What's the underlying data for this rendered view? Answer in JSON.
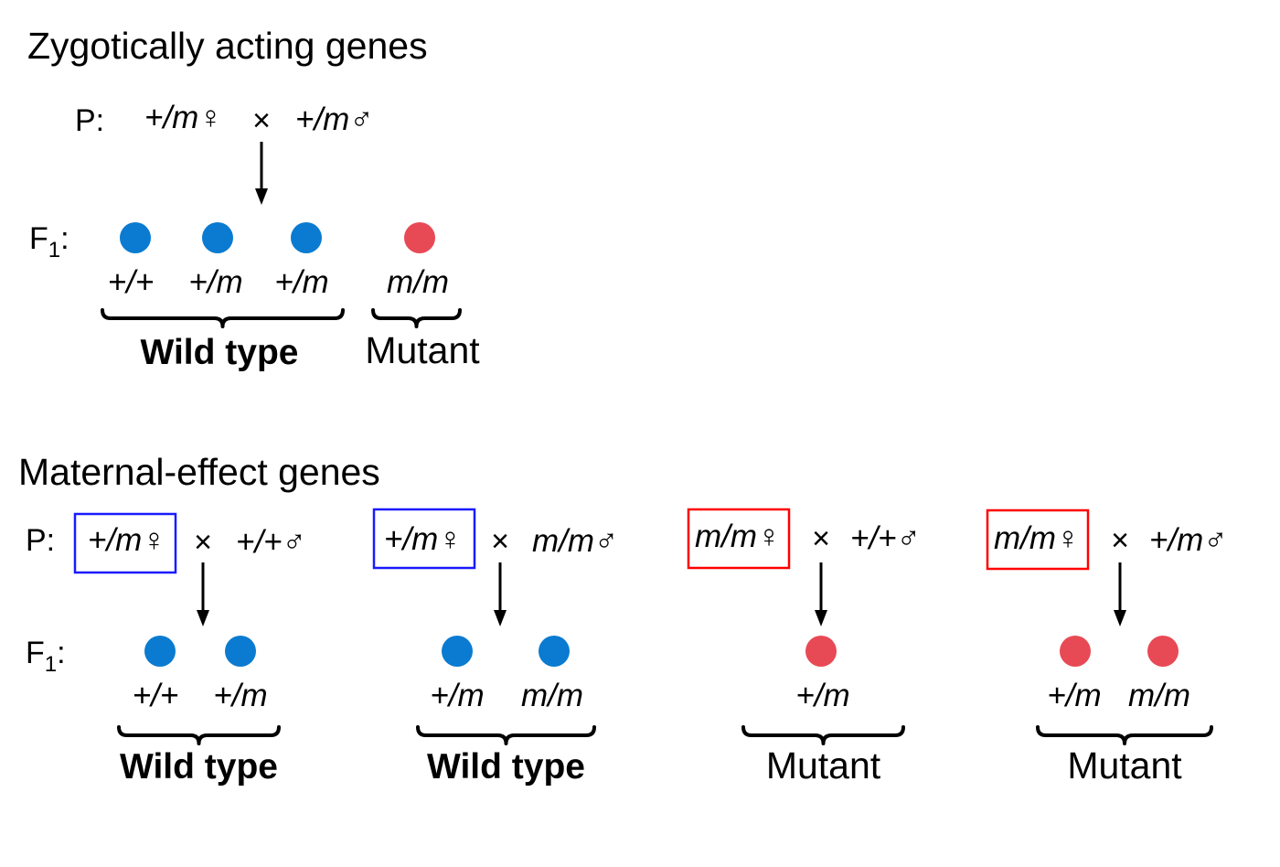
{
  "colors": {
    "wild_type_dot": "#0a7bd0",
    "mutant_dot": "#e84a55",
    "heterozygous_mother_box": "#1a1aff",
    "homozygous_mother_box": "#ff0000"
  },
  "zygotic": {
    "title": "Zygotically acting genes",
    "p_label": "P:",
    "f1_label": "F",
    "f1_sub": "1",
    "f1_colon": ":",
    "female": "+/m♀",
    "cross": "×",
    "male": "+/m♂",
    "offspring": [
      {
        "genotype": "+/+",
        "phenotype": "wild"
      },
      {
        "genotype": "+/m",
        "phenotype": "wild"
      },
      {
        "genotype": "+/m",
        "phenotype": "wild"
      },
      {
        "genotype": "m/m",
        "phenotype": "mutant"
      }
    ],
    "groups": [
      "Wild type",
      "Mutant"
    ]
  },
  "maternal": {
    "title": "Maternal-effect genes",
    "p_label": "P:",
    "f1_label": "F",
    "f1_sub": "1",
    "f1_colon": ":",
    "crosses": [
      {
        "female": "+/m♀",
        "cross": "×",
        "male": "+/+♂",
        "box": "blue",
        "offspring": [
          "+/+",
          "+/m"
        ],
        "phenotype": "wild",
        "result": "Wild type"
      },
      {
        "female": "+/m♀",
        "cross": "×",
        "male": "m/m♂",
        "box": "blue",
        "offspring": [
          "+/m",
          "m/m"
        ],
        "phenotype": "wild",
        "result": "Wild type"
      },
      {
        "female": "m/m♀",
        "cross": "×",
        "male": "+/+♂",
        "box": "red",
        "offspring": [
          "+/m"
        ],
        "phenotype": "mutant",
        "result": "Mutant"
      },
      {
        "female": "m/m♀",
        "cross": "×",
        "male": "+/m♂",
        "box": "red",
        "offspring": [
          "+/m",
          "m/m"
        ],
        "phenotype": "mutant",
        "result": "Mutant"
      }
    ]
  }
}
